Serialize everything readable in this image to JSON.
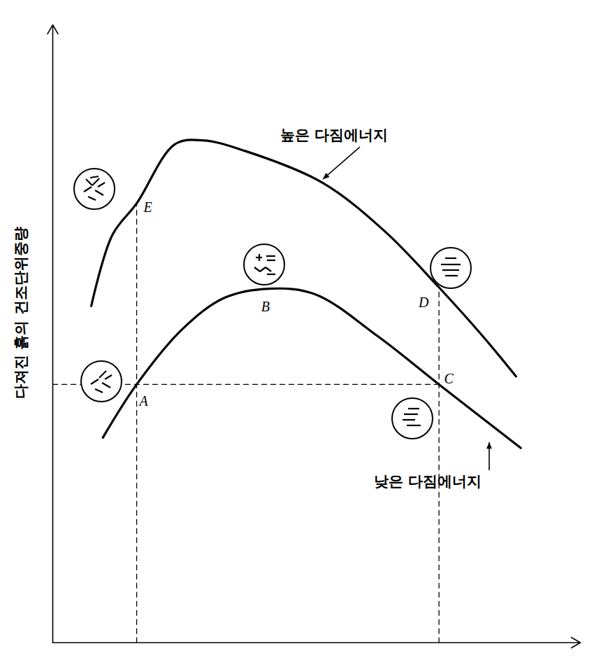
{
  "chart_data": {
    "type": "line",
    "y_label": "다져진 흙의 건조단위중량",
    "xlim": [
      0,
      100
    ],
    "ylim": [
      0,
      100
    ],
    "xticks": [],
    "yticks": [],
    "tick_labels": false,
    "grid": false,
    "series": [
      {
        "name": "높은 다짐에너지",
        "color": "#000000",
        "line_style": "solid",
        "x": [
          7.3,
          11.3,
          15.9,
          23.2,
          28.5,
          36.4,
          51.0,
          62.9,
          73.2,
          81.5,
          87.8
        ],
        "values": [
          54.5,
          66.0,
          71.1,
          80.7,
          81.3,
          79.6,
          74.5,
          66.6,
          57.5,
          49.6,
          43.1
        ]
      },
      {
        "name": "낮은 다짐에너지",
        "color": "#000000",
        "line_style": "solid",
        "x": [
          9.5,
          15.9,
          24.5,
          32.5,
          41.1,
          49.7,
          61.6,
          73.2,
          88.7
        ],
        "values": [
          33.2,
          41.8,
          50.7,
          55.8,
          57.3,
          56.4,
          49.6,
          41.8,
          31.5
        ]
      }
    ],
    "points": [
      {
        "label": "A",
        "x": 15.9,
        "y": 41.8
      },
      {
        "label": "B",
        "x": 41.1,
        "y": 57.3
      },
      {
        "label": "C",
        "x": 73.2,
        "y": 41.8
      },
      {
        "label": "D",
        "x": 73.2,
        "y": 57.5
      },
      {
        "label": "E",
        "x": 15.9,
        "y": 71.1
      }
    ],
    "dashed_lines": [
      {
        "x": [
          15.9,
          15.9
        ],
        "y": [
          0,
          71.1
        ],
        "line_style": "dashed"
      },
      {
        "x": [
          0,
          73.2
        ],
        "y": [
          41.8,
          41.8
        ],
        "line_style": "dashed"
      },
      {
        "x": [
          73.2,
          73.2
        ],
        "y": [
          0,
          57.5
        ],
        "line_style": "dashed"
      }
    ]
  }
}
